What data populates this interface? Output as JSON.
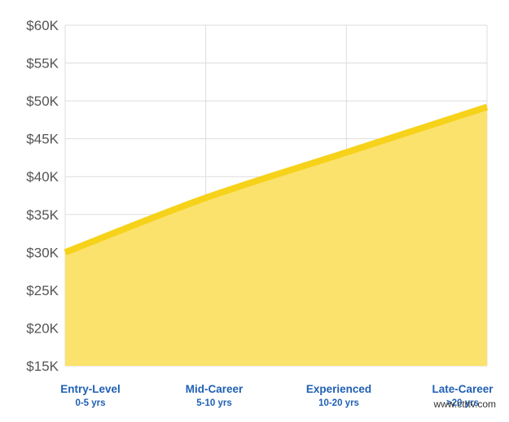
{
  "chart_data": {
    "type": "area",
    "categories": [
      "Entry-Level",
      "Mid-Career",
      "Experienced",
      "Late-Career"
    ],
    "category_sublabels": [
      "0-5 yrs",
      "5-10 yrs",
      "10-20 yrs",
      ">20 yrs"
    ],
    "series": [
      {
        "values": [
          30000,
          37200,
          43200,
          49200
        ]
      }
    ],
    "yticks": [
      "$15K",
      "$20K",
      "$25K",
      "$30K",
      "$35K",
      "$40K",
      "$45K",
      "$50K",
      "$55K",
      "$60K"
    ],
    "ylim": [
      15000,
      60000
    ],
    "grid": true,
    "legend": "none"
  },
  "colors": {
    "line": "#f6d21a",
    "area": "#fbe26d",
    "grid": "#dddddd",
    "category_label": "#1f5fb4",
    "tick_label": "#555555"
  },
  "watermark": "www.ctrtv.com"
}
